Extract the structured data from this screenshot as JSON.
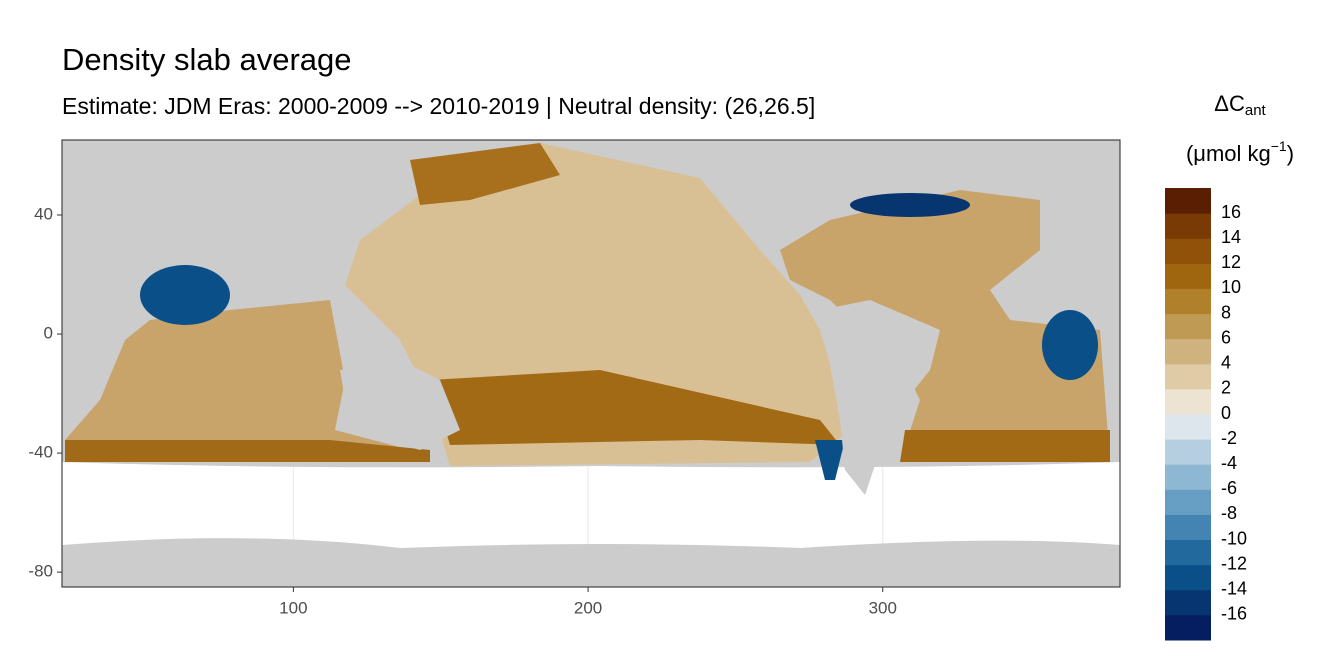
{
  "chart_data": {
    "type": "map",
    "title": "Density slab average",
    "subtitle": "Estimate: JDM Eras: 2000-2009 --> 2010-2019 | Neutral density: (26,26.5]",
    "xlim": [
      21.5,
      380.5
    ],
    "ylim": [
      -85,
      65.2
    ],
    "xticks": [
      100,
      200,
      300
    ],
    "yticks": [
      40,
      0,
      -40,
      -80
    ],
    "legend_title": {
      "symbol": "ΔC",
      "subscript": "ant",
      "unit": "(μmol kg",
      "exponent": "−1",
      "close": ")"
    },
    "legend_lim": [
      -18,
      18
    ],
    "legend_ticks": [
      -16,
      -14,
      -12,
      -10,
      -8,
      -6,
      -4,
      -2,
      0,
      2,
      4,
      6,
      8,
      10,
      12,
      14,
      16
    ],
    "legend_colors": [
      "#041e5f",
      "#06356f",
      "#0a4f87",
      "#226a9e",
      "#4484b2",
      "#669ec4",
      "#8db7d3",
      "#b5cfe0",
      "#dde6ec",
      "#ece3d3",
      "#dfcba6",
      "#cfb27e",
      "#bf9a55",
      "#b0802a",
      "#a0660f",
      "#8f5208",
      "#7a3a05",
      "#5a1e02"
    ]
  }
}
